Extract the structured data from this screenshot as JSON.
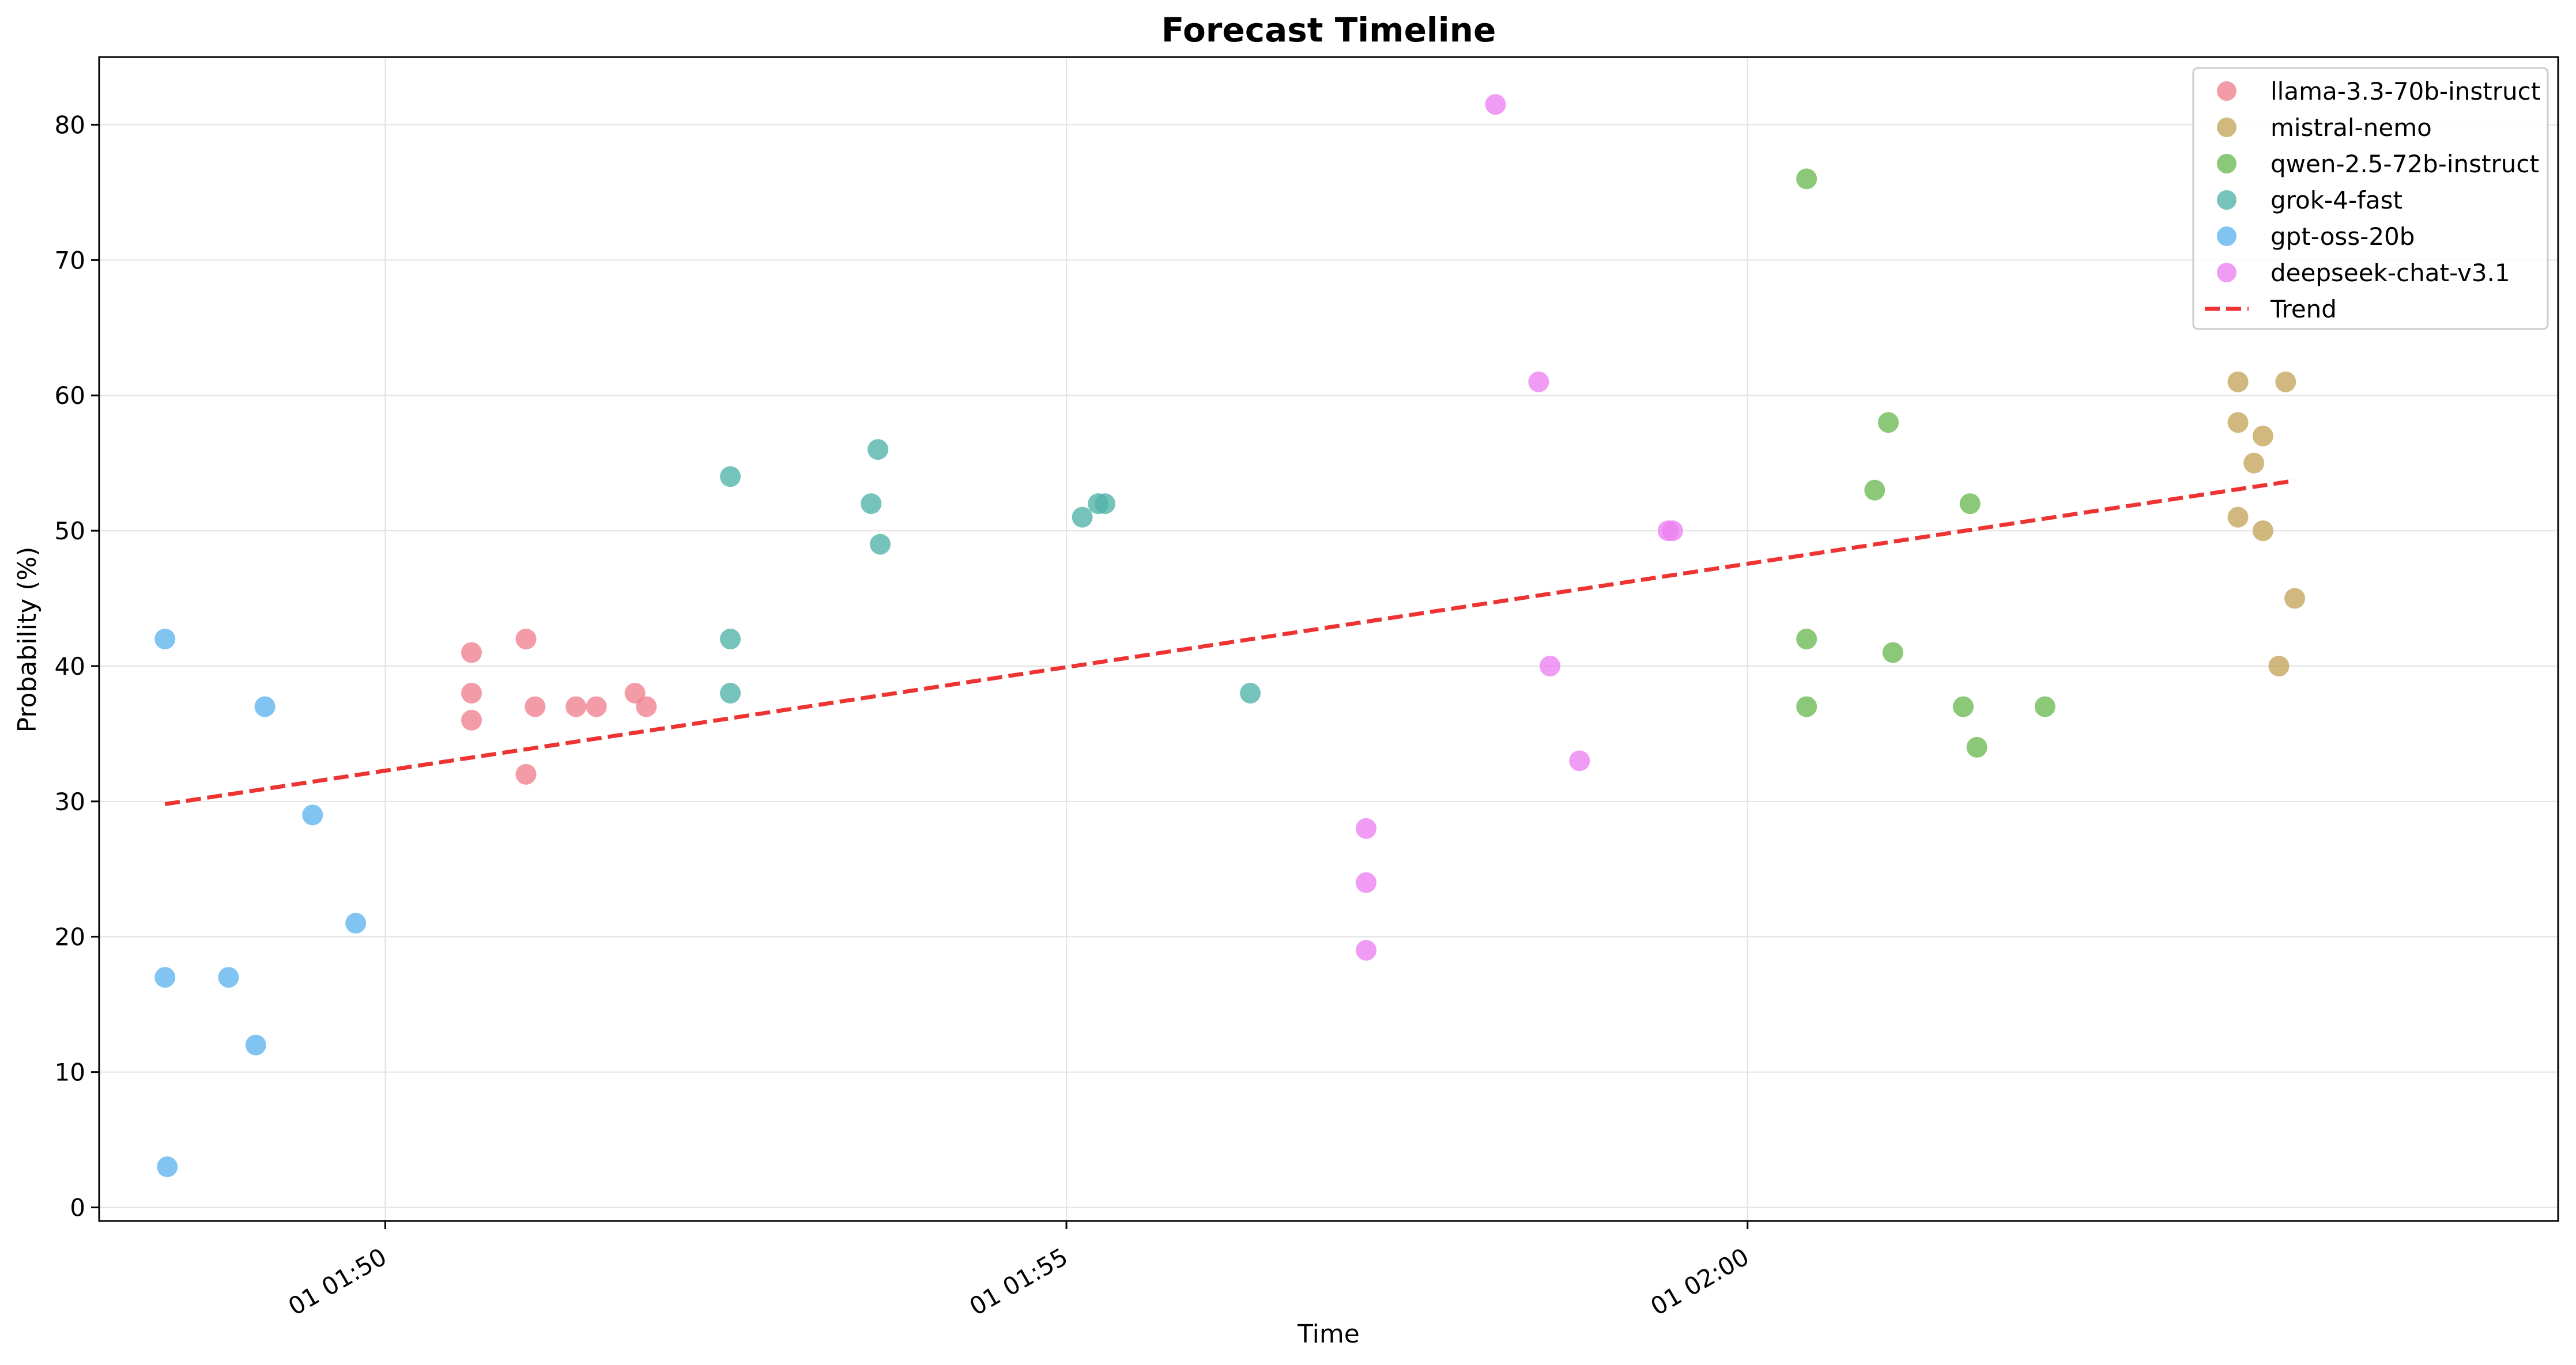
{
  "chart_data": {
    "type": "scatter",
    "title": "Forecast Timeline",
    "xlabel": "Time",
    "ylabel": "Probability (%)",
    "x_axis": {
      "type": "time",
      "range": [
        "01:47:54",
        "02:05:57"
      ],
      "ticks": [
        "01:50:00",
        "01:55:00",
        "02:00:00"
      ],
      "tick_labels": [
        "01 01:50",
        "01 01:55",
        "01 02:00"
      ]
    },
    "y_axis": {
      "range": [
        -1,
        85
      ],
      "ticks": [
        0,
        10,
        20,
        30,
        40,
        50,
        60,
        70,
        80
      ],
      "tick_labels": [
        "0",
        "10",
        "20",
        "30",
        "40",
        "50",
        "60",
        "70",
        "80"
      ]
    },
    "grid": true,
    "legend_position": "top-right",
    "series": [
      {
        "name": "llama-3.3-70b-instruct",
        "color": "#f0808e",
        "points": [
          {
            "x": "01:50:38",
            "y": 41
          },
          {
            "x": "01:50:38",
            "y": 38
          },
          {
            "x": "01:50:38",
            "y": 36
          },
          {
            "x": "01:51:02",
            "y": 42
          },
          {
            "x": "01:51:02",
            "y": 32
          },
          {
            "x": "01:51:06",
            "y": 37
          },
          {
            "x": "01:51:24",
            "y": 37
          },
          {
            "x": "01:51:33",
            "y": 37
          },
          {
            "x": "01:51:50",
            "y": 38
          },
          {
            "x": "01:51:55",
            "y": 37
          }
        ]
      },
      {
        "name": "mistral-nemo",
        "color": "#c4a45a",
        "points": [
          {
            "x": "02:03:36",
            "y": 61
          },
          {
            "x": "02:03:36",
            "y": 58
          },
          {
            "x": "02:03:36",
            "y": 51
          },
          {
            "x": "02:03:43",
            "y": 55
          },
          {
            "x": "02:03:47",
            "y": 57
          },
          {
            "x": "02:03:47",
            "y": 50
          },
          {
            "x": "02:03:54",
            "y": 40
          },
          {
            "x": "02:03:57",
            "y": 61
          },
          {
            "x": "02:04:01",
            "y": 45
          }
        ]
      },
      {
        "name": "qwen-2.5-72b-instruct",
        "color": "#6ab952",
        "points": [
          {
            "x": "02:00:26",
            "y": 76
          },
          {
            "x": "02:00:26",
            "y": 42
          },
          {
            "x": "02:00:26",
            "y": 37
          },
          {
            "x": "02:00:56",
            "y": 53
          },
          {
            "x": "02:01:02",
            "y": 58
          },
          {
            "x": "02:01:04",
            "y": 41
          },
          {
            "x": "02:01:38",
            "y": 52
          },
          {
            "x": "02:01:35",
            "y": 37
          },
          {
            "x": "02:01:41",
            "y": 34
          },
          {
            "x": "02:02:11",
            "y": 37
          }
        ]
      },
      {
        "name": "grok-4-fast",
        "color": "#4fb2a8",
        "points": [
          {
            "x": "01:52:32",
            "y": 54
          },
          {
            "x": "01:52:32",
            "y": 42
          },
          {
            "x": "01:52:32",
            "y": 38
          },
          {
            "x": "01:53:34",
            "y": 52
          },
          {
            "x": "01:53:37",
            "y": 56
          },
          {
            "x": "01:53:38",
            "y": 49
          },
          {
            "x": "01:55:07",
            "y": 51
          },
          {
            "x": "01:55:14",
            "y": 52
          },
          {
            "x": "01:55:17",
            "y": 52
          },
          {
            "x": "01:56:21",
            "y": 38
          }
        ]
      },
      {
        "name": "gpt-oss-20b",
        "color": "#5db4ee",
        "points": [
          {
            "x": "01:48:23",
            "y": 42
          },
          {
            "x": "01:48:23",
            "y": 17
          },
          {
            "x": "01:48:24",
            "y": 3
          },
          {
            "x": "01:48:51",
            "y": 17
          },
          {
            "x": "01:49:03",
            "y": 12
          },
          {
            "x": "01:49:07",
            "y": 37
          },
          {
            "x": "01:49:28",
            "y": 29
          },
          {
            "x": "01:49:47",
            "y": 21
          }
        ]
      },
      {
        "name": "deepseek-chat-v3.1",
        "color": "#ec80f2",
        "points": [
          {
            "x": "01:58:09",
            "y": 81.5
          },
          {
            "x": "01:58:28",
            "y": 61
          },
          {
            "x": "01:58:33",
            "y": 40
          },
          {
            "x": "01:58:46",
            "y": 33
          },
          {
            "x": "01:59:25",
            "y": 50
          },
          {
            "x": "01:59:27",
            "y": 50
          },
          {
            "x": "01:57:12",
            "y": 28
          },
          {
            "x": "01:57:12",
            "y": 24
          },
          {
            "x": "01:57:12",
            "y": 19
          }
        ]
      }
    ],
    "trend": {
      "name": "Trend",
      "color": "#ee3333",
      "style": "dashed",
      "start": {
        "x": "01:48:23",
        "y": 29.8
      },
      "end": {
        "x": "02:04:01",
        "y": 53.7
      }
    }
  }
}
